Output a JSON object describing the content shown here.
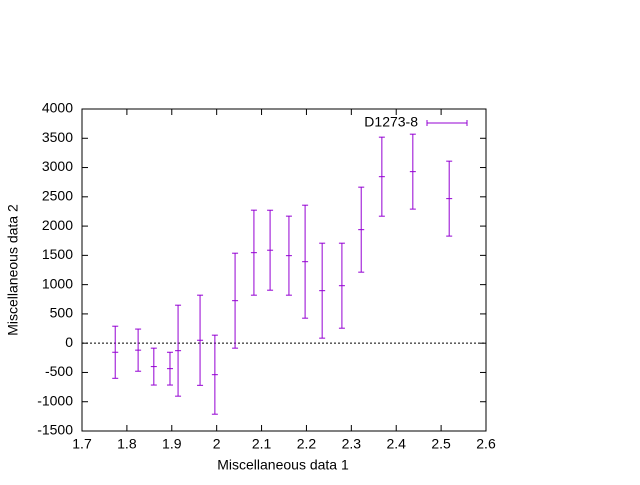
{
  "chart_data": {
    "type": "errorbar",
    "xlabel": "Miscellaneous data 1",
    "ylabel": "Miscellaneous data 2",
    "x": [
      1.774,
      1.825,
      1.86,
      1.896,
      1.914,
      1.963,
      1.996,
      2.041,
      2.083,
      2.119,
      2.161,
      2.197,
      2.235,
      2.279,
      2.322,
      2.368,
      2.437,
      2.518
    ],
    "series": [
      {
        "name": "D1273-8",
        "color": "#9400d3",
        "values": [
          -155,
          -119,
          -400,
          -435,
          -128,
          50,
          -538,
          726,
          1546,
          1588,
          1495,
          1392,
          897,
          982,
          1939,
          2844,
          2930,
          2469
        ],
        "errors": [
          445,
          360,
          315,
          280,
          777,
          770,
          675,
          811,
          726,
          683,
          675,
          965,
          811,
          726,
          726,
          675,
          640,
          640
        ]
      }
    ],
    "xlim": [
      1.7,
      2.6
    ],
    "xticks": [
      1.7,
      1.8,
      1.9,
      2,
      2.1,
      2.2,
      2.3,
      2.4,
      2.5,
      2.6
    ],
    "ylim": [
      -1500,
      4000
    ],
    "yticks": [
      -1500,
      -1000,
      -500,
      0,
      500,
      1000,
      1500,
      2000,
      2500,
      3000,
      3500,
      4000
    ],
    "zero_line": true,
    "legend": "top-right"
  }
}
